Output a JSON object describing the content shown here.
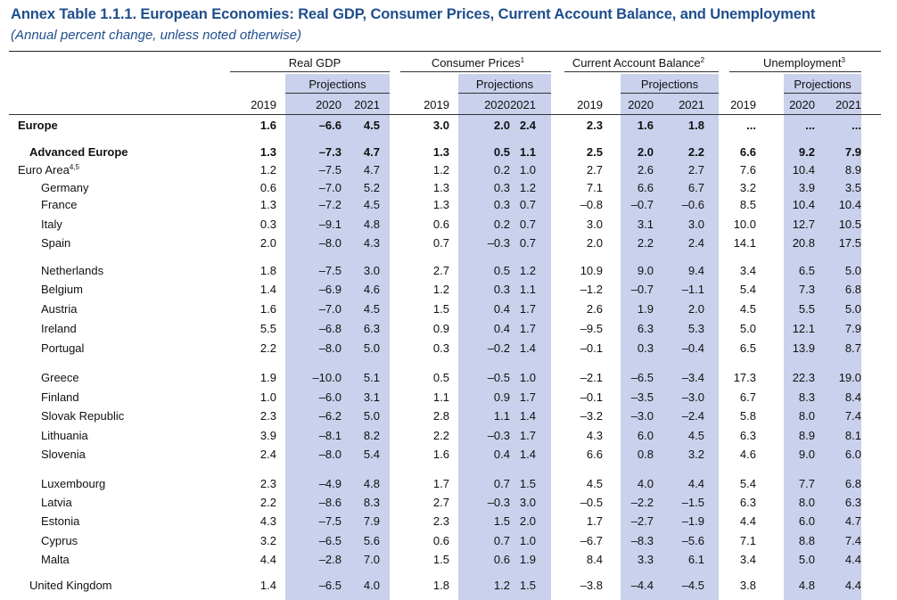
{
  "title": "Annex Table 1.1.1. European Economies: Real GDP, Consumer Prices, Current Account Balance, and Unemployment",
  "subtitle": "(Annual percent change, unless noted otherwise)",
  "groups": [
    {
      "label": "Real GDP",
      "note": ""
    },
    {
      "label": "Consumer Prices",
      "note": "1"
    },
    {
      "label": "Current Account Balance",
      "note": "2"
    },
    {
      "label": "Unemployment",
      "note": "3"
    }
  ],
  "projections_label": "Projections",
  "years": [
    "2019",
    "2020",
    "2021"
  ],
  "rows": [
    {
      "label": "Europe",
      "note": "",
      "values": [
        "1.6",
        "–6.6",
        "4.5",
        "3.0",
        "2.0",
        "2.4",
        "2.3",
        "1.6",
        "1.8",
        "...",
        "...",
        "..."
      ]
    },
    {
      "label": "Advanced Europe",
      "note": "",
      "values": [
        "1.3",
        "–7.3",
        "4.7",
        "1.3",
        "0.5",
        "1.1",
        "2.5",
        "2.0",
        "2.2",
        "6.6",
        "9.2",
        "7.9"
      ]
    },
    {
      "label": "Euro Area",
      "note": "4,5",
      "values": [
        "1.2",
        "–7.5",
        "4.7",
        "1.2",
        "0.2",
        "1.0",
        "2.7",
        "2.6",
        "2.7",
        "7.6",
        "10.4",
        "8.9"
      ]
    },
    {
      "label": "Germany",
      "note": "",
      "values": [
        "0.6",
        "–7.0",
        "5.2",
        "1.3",
        "0.3",
        "1.2",
        "7.1",
        "6.6",
        "6.7",
        "3.2",
        "3.9",
        "3.5"
      ]
    },
    {
      "label": "France",
      "note": "",
      "values": [
        "1.3",
        "–7.2",
        "4.5",
        "1.3",
        "0.3",
        "0.7",
        "–0.8",
        "–0.7",
        "–0.6",
        "8.5",
        "10.4",
        "10.4"
      ]
    },
    {
      "label": "Italy",
      "note": "",
      "values": [
        "0.3",
        "–9.1",
        "4.8",
        "0.6",
        "0.2",
        "0.7",
        "3.0",
        "3.1",
        "3.0",
        "10.0",
        "12.7",
        "10.5"
      ]
    },
    {
      "label": "Spain",
      "note": "",
      "values": [
        "2.0",
        "–8.0",
        "4.3",
        "0.7",
        "–0.3",
        "0.7",
        "2.0",
        "2.2",
        "2.4",
        "14.1",
        "20.8",
        "17.5"
      ]
    },
    {
      "label": "Netherlands",
      "note": "",
      "values": [
        "1.8",
        "–7.5",
        "3.0",
        "2.7",
        "0.5",
        "1.2",
        "10.9",
        "9.0",
        "9.4",
        "3.4",
        "6.5",
        "5.0"
      ]
    },
    {
      "label": "Belgium",
      "note": "",
      "values": [
        "1.4",
        "–6.9",
        "4.6",
        "1.2",
        "0.3",
        "1.1",
        "–1.2",
        "–0.7",
        "–1.1",
        "5.4",
        "7.3",
        "6.8"
      ]
    },
    {
      "label": "Austria",
      "note": "",
      "values": [
        "1.6",
        "–7.0",
        "4.5",
        "1.5",
        "0.4",
        "1.7",
        "2.6",
        "1.9",
        "2.0",
        "4.5",
        "5.5",
        "5.0"
      ]
    },
    {
      "label": "Ireland",
      "note": "",
      "values": [
        "5.5",
        "–6.8",
        "6.3",
        "0.9",
        "0.4",
        "1.7",
        "–9.5",
        "6.3",
        "5.3",
        "5.0",
        "12.1",
        "7.9"
      ]
    },
    {
      "label": "Portugal",
      "note": "",
      "values": [
        "2.2",
        "–8.0",
        "5.0",
        "0.3",
        "–0.2",
        "1.4",
        "–0.1",
        "0.3",
        "–0.4",
        "6.5",
        "13.9",
        "8.7"
      ]
    },
    {
      "label": "Greece",
      "note": "",
      "values": [
        "1.9",
        "–10.0",
        "5.1",
        "0.5",
        "–0.5",
        "1.0",
        "–2.1",
        "–6.5",
        "–3.4",
        "17.3",
        "22.3",
        "19.0"
      ]
    },
    {
      "label": "Finland",
      "note": "",
      "values": [
        "1.0",
        "–6.0",
        "3.1",
        "1.1",
        "0.9",
        "1.7",
        "–0.1",
        "–3.5",
        "–3.0",
        "6.7",
        "8.3",
        "8.4"
      ]
    },
    {
      "label": "Slovak Republic",
      "note": "",
      "values": [
        "2.3",
        "–6.2",
        "5.0",
        "2.8",
        "1.1",
        "1.4",
        "–3.2",
        "–3.0",
        "–2.4",
        "5.8",
        "8.0",
        "7.4"
      ]
    },
    {
      "label": "Lithuania",
      "note": "",
      "values": [
        "3.9",
        "–8.1",
        "8.2",
        "2.2",
        "–0.3",
        "1.7",
        "4.3",
        "6.0",
        "4.5",
        "6.3",
        "8.9",
        "8.1"
      ]
    },
    {
      "label": "Slovenia",
      "note": "",
      "values": [
        "2.4",
        "–8.0",
        "5.4",
        "1.6",
        "0.4",
        "1.4",
        "6.6",
        "0.8",
        "3.2",
        "4.6",
        "9.0",
        "6.0"
      ]
    },
    {
      "label": "Luxembourg",
      "note": "",
      "values": [
        "2.3",
        "–4.9",
        "4.8",
        "1.7",
        "0.7",
        "1.5",
        "4.5",
        "4.0",
        "4.4",
        "5.4",
        "7.7",
        "6.8"
      ]
    },
    {
      "label": "Latvia",
      "note": "",
      "values": [
        "2.2",
        "–8.6",
        "8.3",
        "2.7",
        "–0.3",
        "3.0",
        "–0.5",
        "–2.2",
        "–1.5",
        "6.3",
        "8.0",
        "6.3"
      ]
    },
    {
      "label": "Estonia",
      "note": "",
      "values": [
        "4.3",
        "–7.5",
        "7.9",
        "2.3",
        "1.5",
        "2.0",
        "1.7",
        "–2.7",
        "–1.9",
        "4.4",
        "6.0",
        "4.7"
      ]
    },
    {
      "label": "Cyprus",
      "note": "",
      "values": [
        "3.2",
        "–6.5",
        "5.6",
        "0.6",
        "0.7",
        "1.0",
        "–6.7",
        "–8.3",
        "–5.6",
        "7.1",
        "8.8",
        "7.4"
      ]
    },
    {
      "label": "Malta",
      "note": "",
      "values": [
        "4.4",
        "–2.8",
        "7.0",
        "1.5",
        "0.6",
        "1.9",
        "8.4",
        "3.3",
        "6.1",
        "3.4",
        "5.0",
        "4.4"
      ]
    },
    {
      "label": "United Kingdom",
      "note": "",
      "values": [
        "1.4",
        "–6.5",
        "4.0",
        "1.8",
        "1.2",
        "1.5",
        "–3.8",
        "–4.4",
        "–4.5",
        "3.8",
        "4.8",
        "4.4"
      ]
    }
  ]
}
